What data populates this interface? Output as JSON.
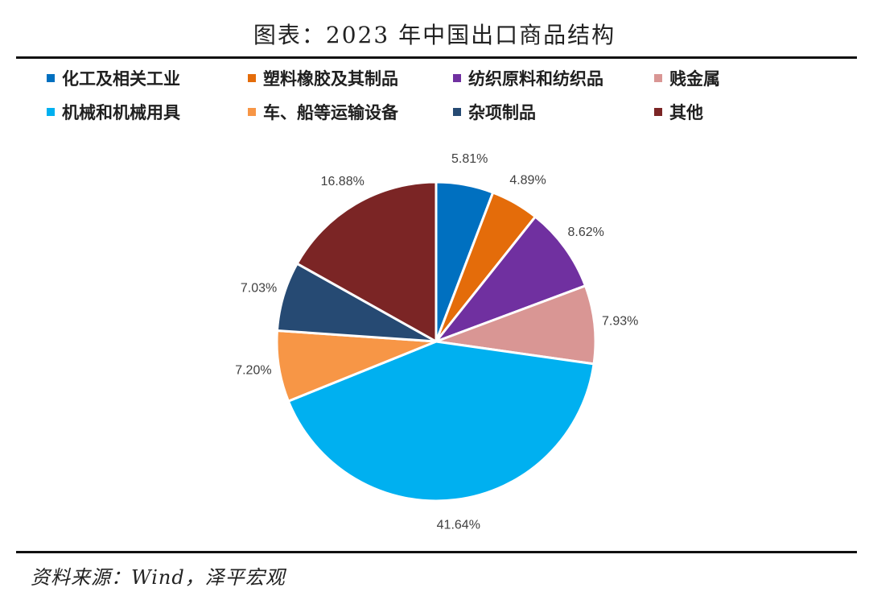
{
  "header": {
    "title": "图表：2023 年中国出口商品结构"
  },
  "chart_data": {
    "type": "pie",
    "title": "",
    "legend_position": "top",
    "categories": [
      "化工及相关工业",
      "塑料橡胶及其制品",
      "纺织原料和纺织品",
      "贱金属",
      "机械和机械用具",
      "车、船等运输设备",
      "杂项制品",
      "其他"
    ],
    "values": [
      5.81,
      4.89,
      8.62,
      7.93,
      41.64,
      7.2,
      7.03,
      16.88
    ],
    "labels": [
      "5.81%",
      "4.89%",
      "8.62%",
      "7.93%",
      "41.64%",
      "7.20%",
      "7.03%",
      "16.88%"
    ],
    "colors": [
      "#0070C0",
      "#E46C0A",
      "#7030A0",
      "#D99694",
      "#00B0F0",
      "#F79646",
      "#264A73",
      "#7B2525"
    ]
  },
  "footer": {
    "source": "资料来源：Wind，泽平宏观"
  }
}
